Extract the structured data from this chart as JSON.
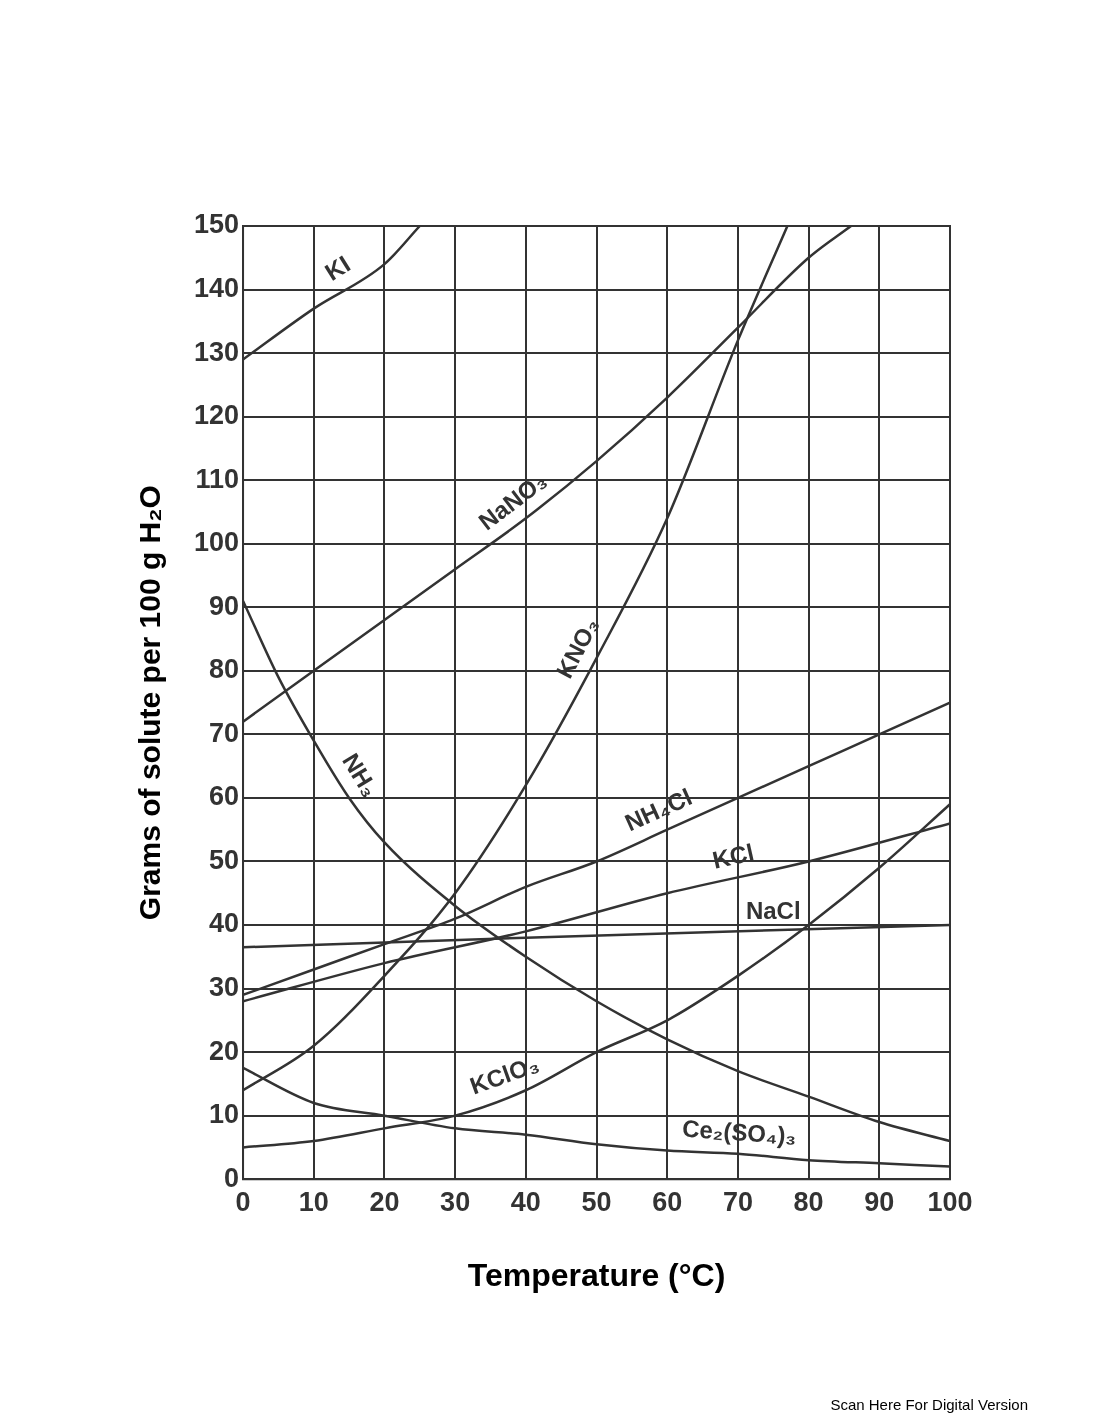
{
  "chart_data": {
    "type": "line",
    "xlabel": "Temperature (°C)",
    "ylabel": "Grams of solute per 100 g H₂O",
    "xlim": [
      0,
      100
    ],
    "xticks": [
      0,
      10,
      20,
      30,
      40,
      50,
      60,
      70,
      80,
      90,
      100
    ],
    "ylim": [
      0,
      150
    ],
    "yticks": [
      0,
      10,
      20,
      30,
      40,
      50,
      60,
      70,
      80,
      90,
      100,
      110,
      120,
      130,
      140,
      150
    ],
    "grid": true,
    "legend": false,
    "marker": "none",
    "line_style": "solid",
    "annotations": [
      "Scan Here For Digital Version"
    ],
    "series": [
      {
        "name": "KI",
        "color": "#333333",
        "x": [
          0,
          10,
          20,
          25
        ],
        "values": [
          129,
          137,
          144,
          150
        ]
      },
      {
        "name": "NaNO₃",
        "color": "#333333",
        "x": [
          0,
          10,
          20,
          30,
          40,
          50,
          60,
          70,
          80,
          86
        ],
        "values": [
          72,
          80,
          88,
          96,
          104,
          113,
          123,
          134,
          145,
          150
        ]
      },
      {
        "name": "KNO₃",
        "color": "#333333",
        "x": [
          0,
          10,
          20,
          30,
          40,
          50,
          60,
          70,
          77
        ],
        "values": [
          14,
          21,
          32,
          45,
          62,
          82,
          104,
          132,
          150
        ]
      },
      {
        "name": "NH₄Cl",
        "color": "#333333",
        "x": [
          0,
          10,
          20,
          30,
          40,
          50,
          60,
          70,
          80,
          90,
          100
        ],
        "values": [
          29,
          33,
          37,
          41,
          46,
          50,
          55,
          60,
          65,
          70,
          75
        ]
      },
      {
        "name": "KCl",
        "color": "#333333",
        "x": [
          0,
          20,
          40,
          60,
          80,
          100
        ],
        "values": [
          28,
          34,
          39,
          45,
          50,
          56
        ]
      },
      {
        "name": "NaCl",
        "color": "#333333",
        "x": [
          0,
          40,
          100
        ],
        "values": [
          36.5,
          38,
          40
        ]
      },
      {
        "name": "NH₃",
        "color": "#333333",
        "x": [
          0,
          5,
          10,
          15,
          20,
          30,
          40,
          50,
          60,
          70,
          80,
          90,
          100
        ],
        "values": [
          91,
          79,
          69,
          60,
          53,
          43,
          35,
          28,
          22,
          17,
          13,
          9,
          6
        ]
      },
      {
        "name": "KClO₃",
        "color": "#333333",
        "x": [
          0,
          10,
          20,
          30,
          40,
          50,
          60,
          70,
          80,
          90,
          100
        ],
        "values": [
          5,
          6,
          8,
          10,
          14,
          20,
          25,
          32,
          40,
          49,
          59
        ]
      },
      {
        "name": "Ce₂(SO₄)₃",
        "color": "#333333",
        "x": [
          0,
          10,
          20,
          30,
          40,
          50,
          60,
          70,
          80,
          90,
          100
        ],
        "values": [
          17.5,
          12,
          10,
          8,
          7,
          5.5,
          4.5,
          4,
          3,
          2.5,
          2
        ]
      }
    ]
  }
}
